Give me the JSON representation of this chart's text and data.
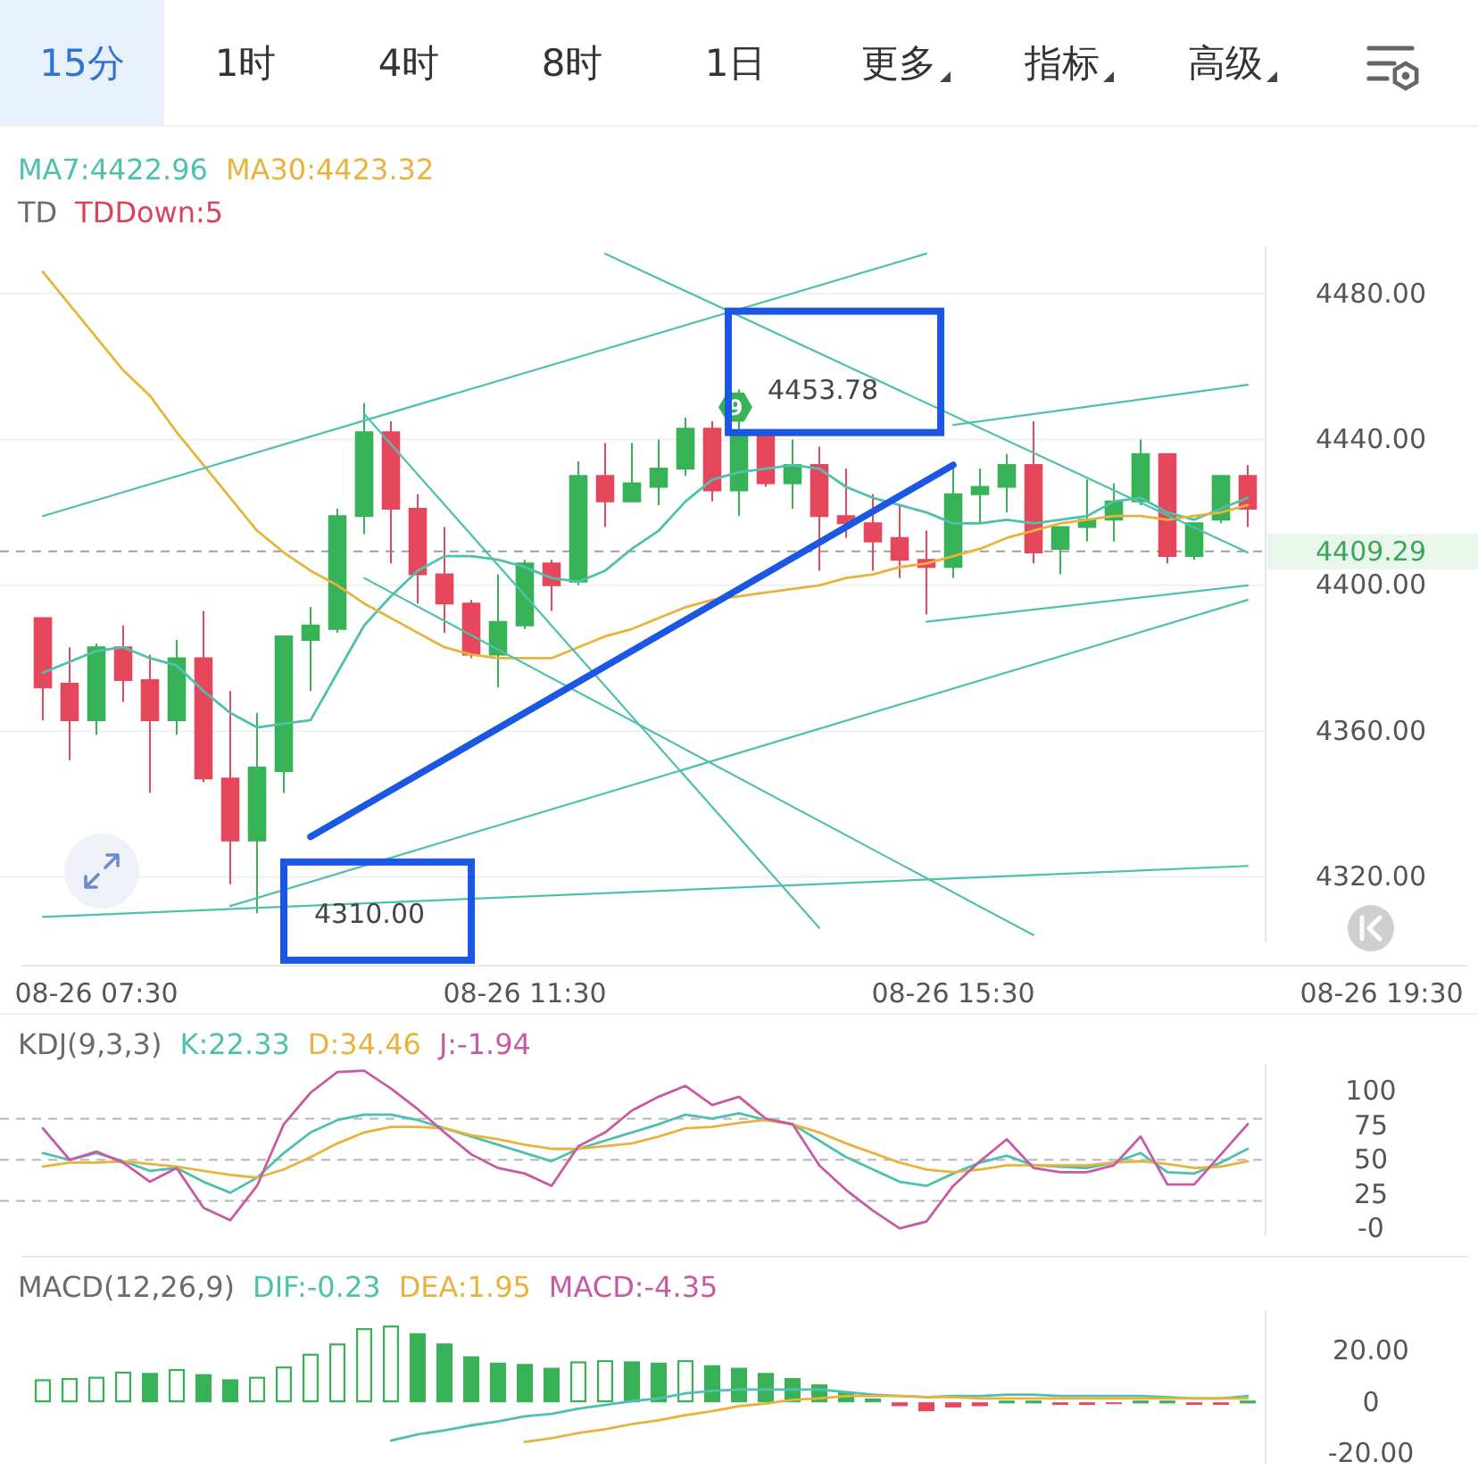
{
  "chart_data": [
    {
      "type": "other",
      "annotations": [
        "15分",
        "1时",
        "4时",
        "8时",
        "1日",
        "更多",
        "指标",
        "高级"
      ]
    },
    {
      "type": "candlestick",
      "legend": "top left",
      "grid": "y",
      "categories": [
        null,
        null,
        "08-26 07:30",
        null,
        null,
        null,
        null,
        null,
        null,
        null,
        null,
        null,
        null,
        null,
        null,
        null,
        null,
        null,
        "08-26 11:30",
        null,
        null,
        null,
        null,
        null,
        null,
        null,
        null,
        null,
        null,
        null,
        null,
        null,
        null,
        null,
        "08-26 15:30",
        null,
        null,
        null,
        null,
        null,
        null,
        null,
        null,
        null,
        null,
        null,
        null,
        null,
        null,
        null,
        "08-26 19:30"
      ],
      "ohlc": [
        [
          4391,
          4391,
          4363,
          4372
        ],
        [
          4373,
          4383,
          4352,
          4363
        ],
        [
          4363,
          4384,
          4359,
          4383
        ],
        [
          4383,
          4389,
          4368,
          4374
        ],
        [
          4374,
          4381,
          4343,
          4363
        ],
        [
          4363,
          4385,
          4359,
          4380
        ],
        [
          4380,
          4393,
          4346,
          4347
        ],
        [
          4347,
          4371,
          4318,
          4330
        ],
        [
          4330,
          4365,
          4310,
          4350
        ],
        [
          4349,
          4386,
          4343,
          4386
        ],
        [
          4385,
          4394,
          4371,
          4389
        ],
        [
          4388,
          4421,
          4387,
          4419
        ],
        [
          4419,
          4450,
          4414,
          4442
        ],
        [
          4442,
          4445,
          4406,
          4421
        ],
        [
          4421,
          4425,
          4395,
          4403
        ],
        [
          4403,
          4416,
          4387,
          4395
        ],
        [
          4395,
          4396,
          4380,
          4381
        ],
        [
          4381,
          4403,
          4372,
          4390
        ],
        [
          4389,
          4407,
          4388,
          4406
        ],
        [
          4406,
          4407,
          4393,
          4400
        ],
        [
          4401,
          4434,
          4400,
          4430
        ],
        [
          4430,
          4439,
          4416,
          4423
        ],
        [
          4423,
          4439,
          4423,
          4428
        ],
        [
          4427,
          4440,
          4422,
          4432
        ],
        [
          4432,
          4446,
          4430,
          4443
        ],
        [
          4443,
          4445,
          4423,
          4426
        ],
        [
          4426,
          4453.78,
          4419,
          4441
        ],
        [
          4441,
          4442,
          4427,
          4428
        ],
        [
          4428,
          4440,
          4421,
          4433
        ],
        [
          4433,
          4438,
          4404,
          4419
        ],
        [
          4419,
          4432,
          4413,
          4417
        ],
        [
          4417,
          4425,
          4404,
          4412
        ],
        [
          4413,
          4422,
          4402,
          4407
        ],
        [
          4407,
          4415,
          4392,
          4405
        ],
        [
          4405,
          4432,
          4402,
          4425
        ],
        [
          4425,
          4432,
          4417,
          4427
        ],
        [
          4427,
          4436,
          4420,
          4433
        ],
        [
          4433,
          4445,
          4406,
          4409
        ],
        [
          4410,
          4416,
          4403,
          4416
        ],
        [
          4416,
          4429,
          4412,
          4418
        ],
        [
          4418,
          4428,
          4412,
          4423
        ],
        [
          4423,
          4440,
          4422,
          4436
        ],
        [
          4436,
          4436,
          4406,
          4408
        ],
        [
          4408,
          4417,
          4407,
          4417
        ],
        [
          4418,
          4430,
          4417,
          4430
        ],
        [
          4430,
          4433,
          4416,
          4421
        ],
        null,
        null,
        null,
        null,
        null
      ],
      "colors": [
        "#e5475c",
        "#e5475c",
        "#37b257",
        "#e5475c",
        "#e5475c",
        "#37b257",
        "#e5475c",
        "#e5475c",
        "#37b257",
        "#37b257",
        "#37b257",
        "#37b257",
        "#37b257",
        "#e5475c",
        "#e5475c",
        "#e5475c",
        "#e5475c",
        "#37b257",
        "#37b257",
        "#e5475c",
        "#37b257",
        "#e5475c",
        "#37b257",
        "#37b257",
        "#37b257",
        "#e5475c",
        "#37b257",
        "#e5475c",
        "#37b257",
        "#e5475c",
        "#e5475c",
        "#e5475c",
        "#e5475c",
        "#e5475c",
        "#37b257",
        "#37b257",
        "#37b257",
        "#e5475c",
        "#37b257",
        "#37b257",
        "#37b257",
        "#37b257",
        "#e5475c",
        "#37b257",
        "#37b257",
        "#e5475c",
        null,
        null,
        null,
        null,
        null
      ],
      "series": [
        {
          "type": "line",
          "name": "MA7:4422.96",
          "color": "#4fc0ae",
          "values": [
            4376,
            4379,
            4382,
            4383,
            4380,
            4378,
            4371,
            4365,
            4361,
            4362,
            4363,
            4376,
            4389,
            4397,
            4404,
            4408,
            4408,
            4407,
            4405,
            4402,
            4401,
            4404,
            4410,
            4415,
            4423,
            4429,
            4431,
            4432,
            4433,
            4432,
            4427,
            4424,
            4422,
            4420,
            4417,
            4417,
            4418,
            4417,
            4418,
            4419,
            4423,
            4424,
            4420,
            4418,
            4421,
            4424,
            null,
            null,
            null,
            null,
            null
          ]
        },
        {
          "type": "line",
          "name": "MA30:4423.32",
          "color": "#e9b23c",
          "values": [
            4486,
            4477,
            4468,
            4459,
            4452,
            4442,
            4433,
            4424,
            4415,
            4409,
            4404,
            4400,
            4395,
            4391,
            4387,
            4383,
            4381,
            4380,
            4380,
            4380,
            4383,
            4386,
            4388,
            4391,
            4394,
            4396,
            4397,
            4398,
            4399,
            4400,
            4402,
            4403,
            4405,
            4406,
            4408,
            4410,
            4413,
            4415,
            4417,
            4418,
            4419,
            4419,
            4418,
            4419,
            4420,
            4422,
            null,
            null,
            null,
            null,
            null
          ]
        },
        {
          "type": "line",
          "color": "#4fc0ae",
          "values": [
            4419,
            null,
            null,
            null,
            null,
            null,
            null,
            null,
            null,
            null,
            null,
            null,
            null,
            null,
            null,
            null,
            null,
            null,
            null,
            null,
            null,
            null,
            null,
            null,
            null,
            null,
            null,
            null,
            null,
            null,
            null,
            null,
            null,
            4491,
            null,
            null,
            null,
            null,
            null,
            null,
            null,
            null,
            null,
            null,
            null,
            null,
            null,
            null,
            null,
            null,
            null
          ]
        },
        {
          "type": "line",
          "color": "#4fc0ae",
          "values": [
            null,
            null,
            null,
            null,
            null,
            null,
            null,
            null,
            null,
            null,
            null,
            null,
            null,
            null,
            null,
            null,
            null,
            null,
            null,
            null,
            null,
            4491,
            null,
            null,
            null,
            null,
            null,
            null,
            null,
            null,
            null,
            null,
            null,
            null,
            null,
            null,
            null,
            null,
            null,
            null,
            null,
            null,
            null,
            null,
            null,
            4409,
            null,
            null,
            null,
            null,
            null
          ]
        },
        {
          "type": "line",
          "color": "#4fc0ae",
          "values": [
            null,
            null,
            null,
            null,
            null,
            null,
            null,
            null,
            null,
            null,
            null,
            null,
            4447,
            null,
            null,
            null,
            null,
            null,
            null,
            null,
            null,
            null,
            null,
            null,
            null,
            null,
            null,
            null,
            null,
            4306,
            null,
            null,
            null,
            null,
            null,
            null,
            null,
            null,
            null,
            null,
            null,
            null,
            null,
            null,
            null,
            null,
            null,
            null,
            null,
            null,
            null
          ]
        },
        {
          "type": "line",
          "color": "#4fc0ae",
          "values": [
            null,
            null,
            null,
            null,
            null,
            null,
            null,
            null,
            null,
            null,
            null,
            null,
            4402,
            null,
            null,
            null,
            null,
            null,
            null,
            null,
            null,
            null,
            null,
            null,
            null,
            null,
            null,
            null,
            null,
            null,
            null,
            null,
            null,
            null,
            null,
            null,
            null,
            4304,
            null,
            null,
            null,
            null,
            null,
            null,
            null,
            null,
            null,
            null,
            null,
            null,
            null
          ]
        },
        {
          "type": "line",
          "color": "#4fc0ae",
          "values": [
            4309,
            null,
            null,
            null,
            null,
            null,
            null,
            null,
            null,
            null,
            null,
            null,
            null,
            null,
            null,
            null,
            null,
            null,
            null,
            null,
            null,
            null,
            null,
            null,
            null,
            null,
            null,
            null,
            null,
            null,
            null,
            null,
            null,
            null,
            null,
            null,
            null,
            null,
            null,
            null,
            null,
            null,
            null,
            null,
            null,
            4323,
            null,
            null,
            null,
            null,
            null
          ]
        },
        {
          "type": "line",
          "color": "#4fc0ae",
          "values": [
            null,
            null,
            null,
            null,
            null,
            null,
            null,
            4312,
            null,
            null,
            null,
            null,
            null,
            null,
            null,
            null,
            null,
            null,
            null,
            null,
            null,
            null,
            null,
            null,
            null,
            null,
            null,
            null,
            null,
            null,
            null,
            null,
            null,
            null,
            null,
            null,
            null,
            null,
            null,
            null,
            null,
            null,
            null,
            null,
            null,
            4396,
            null,
            null,
            null,
            null,
            null
          ]
        },
        {
          "type": "line",
          "color": "#4fc0ae",
          "values": [
            null,
            null,
            null,
            null,
            null,
            null,
            null,
            null,
            null,
            null,
            null,
            null,
            null,
            null,
            null,
            null,
            null,
            null,
            null,
            null,
            null,
            null,
            null,
            null,
            null,
            null,
            null,
            null,
            null,
            null,
            null,
            null,
            null,
            4390,
            null,
            null,
            null,
            null,
            null,
            null,
            null,
            null,
            null,
            null,
            null,
            4400,
            null,
            null,
            null,
            null,
            null
          ]
        },
        {
          "type": "line",
          "color": "#4fc0ae",
          "values": [
            null,
            null,
            null,
            null,
            null,
            null,
            null,
            null,
            null,
            null,
            null,
            null,
            null,
            null,
            null,
            null,
            null,
            null,
            null,
            null,
            null,
            null,
            null,
            null,
            null,
            null,
            null,
            null,
            null,
            null,
            null,
            null,
            null,
            null,
            4444,
            null,
            null,
            null,
            null,
            null,
            null,
            null,
            null,
            null,
            null,
            4455,
            null,
            null,
            null,
            null,
            null
          ]
        },
        {
          "type": "line",
          "color": "#1b57e3",
          "values": [
            null,
            null,
            null,
            null,
            null,
            null,
            null,
            null,
            null,
            null,
            4331,
            null,
            null,
            null,
            null,
            null,
            null,
            null,
            null,
            null,
            null,
            null,
            null,
            null,
            null,
            null,
            null,
            null,
            null,
            null,
            null,
            null,
            null,
            null,
            4433,
            null,
            null,
            null,
            null,
            null,
            null,
            null,
            null,
            null,
            null,
            null,
            null,
            null,
            null,
            null,
            null
          ]
        }
      ],
      "ylim": [
        4302,
        4493
      ],
      "yticks": [
        {
          "value": 4320,
          "label": "4320.00"
        },
        {
          "value": 4360,
          "label": "4360.00"
        },
        {
          "value": 4400,
          "label": "4400.00"
        },
        {
          "value": 4440,
          "label": "4440.00"
        },
        {
          "value": 4480,
          "label": "4480.00"
        }
      ],
      "ref_lines": [
        {
          "axis": "y",
          "value": 4409.29,
          "label": "4409.29",
          "color": "#9e9e9e",
          "line_style": "dashed"
        }
      ],
      "annotations": [
        "TD",
        "TDDown:5",
        "9",
        "4453.78",
        "4310.00"
      ]
    },
    {
      "type": "line",
      "title": "KDJ(9,3,3)",
      "legend": "top left",
      "categories": [
        null,
        null,
        null,
        null,
        null,
        null,
        null,
        null,
        null,
        null,
        null,
        null,
        null,
        null,
        null,
        null,
        null,
        null,
        null,
        null,
        null,
        null,
        null,
        null,
        null,
        null,
        null,
        null,
        null,
        null,
        null,
        null,
        null,
        null,
        null,
        null,
        null,
        null,
        null,
        null,
        null,
        null,
        null,
        null,
        null,
        null,
        null,
        null,
        null,
        null,
        null
      ],
      "series": [
        {
          "name": "K:22.33",
          "color": "#4fc0ae",
          "values": [
            55,
            50,
            55,
            49,
            42,
            44,
            34,
            26,
            37,
            55,
            70,
            79,
            83,
            83,
            79,
            73,
            67,
            61,
            55,
            49,
            58,
            64,
            70,
            76,
            83,
            80,
            84,
            79,
            76,
            64,
            52,
            43,
            34,
            31,
            40,
            48,
            53,
            46,
            45,
            44,
            48,
            55,
            41,
            40,
            48,
            58,
            null,
            null,
            null,
            null,
            null
          ]
        },
        {
          "name": "D:34.46",
          "color": "#e9b23c",
          "values": [
            45,
            48,
            48,
            49,
            47,
            45,
            42,
            39,
            37,
            43,
            52,
            62,
            70,
            74,
            74,
            73,
            68,
            65,
            61,
            58,
            58,
            60,
            62,
            67,
            73,
            74,
            77,
            79,
            76,
            70,
            62,
            55,
            48,
            43,
            41,
            43,
            46,
            46,
            46,
            46,
            48,
            49,
            47,
            44,
            45,
            49,
            null,
            null,
            null,
            null,
            null
          ]
        },
        {
          "name": "J:-1.94",
          "color": "#c85aa5",
          "values": [
            73,
            50,
            56,
            48,
            34,
            44,
            15,
            6,
            31,
            76,
            99,
            114,
            115,
            102,
            87,
            70,
            54,
            44,
            40,
            31,
            60,
            70,
            86,
            96,
            104,
            90,
            96,
            80,
            76,
            46,
            28,
            13,
            0,
            5,
            31,
            49,
            65,
            44,
            41,
            41,
            46,
            67,
            32,
            32,
            54,
            76,
            null,
            null,
            null,
            null,
            null
          ]
        }
      ],
      "ylim": [
        -5,
        120
      ],
      "yticks": [
        100,
        75,
        50,
        25,
        {
          "value": 0,
          "label": "-0"
        }
      ],
      "ref_lines": [
        {
          "axis": "y",
          "value": 80,
          "color": "#b5b5b5",
          "line_style": "dashed"
        },
        {
          "axis": "y",
          "value": 50,
          "color": "#b5b5b5",
          "line_style": "dashed"
        },
        {
          "axis": "y",
          "value": 20,
          "color": "#b5b5b5",
          "line_style": "dashed"
        }
      ]
    },
    {
      "type": "bar",
      "title": "MACD(12,26,9)",
      "legend": "top left",
      "categories": [
        null,
        null,
        null,
        null,
        null,
        null,
        null,
        null,
        null,
        null,
        null,
        null,
        null,
        null,
        null,
        null,
        null,
        null,
        null,
        null,
        null,
        null,
        null,
        null,
        null,
        null,
        null,
        null,
        null,
        null,
        null,
        null,
        null,
        null,
        null,
        null,
        null,
        null,
        null,
        null,
        null,
        null,
        null,
        null,
        null,
        null,
        null,
        null,
        null,
        null,
        null
      ],
      "series": [
        {
          "type": "line",
          "name": "DIF:-0.23",
          "color": "#4fc0ae",
          "values": [
            null,
            null,
            null,
            null,
            null,
            null,
            null,
            null,
            null,
            null,
            null,
            null,
            null,
            -15,
            -12.5,
            -11,
            -9,
            -7.5,
            -5.5,
            -4.5,
            -2.5,
            -1,
            0.5,
            1.5,
            3.5,
            4.5,
            5,
            5,
            5,
            5,
            4,
            3,
            2.5,
            2,
            2.5,
            2.5,
            3,
            3,
            2.5,
            2.5,
            2.5,
            2.5,
            2,
            1.5,
            1.5,
            2.5,
            null,
            null,
            null,
            null,
            null
          ]
        },
        {
          "type": "line",
          "name": "DEA:1.95",
          "color": "#e9b23c",
          "values": [
            null,
            null,
            null,
            null,
            null,
            null,
            null,
            null,
            null,
            null,
            null,
            null,
            null,
            null,
            null,
            null,
            null,
            null,
            -15.5,
            -14,
            -12,
            -10.5,
            -8.5,
            -7,
            -5,
            -3.5,
            -1.5,
            -0.5,
            1,
            1.5,
            2.5,
            2.5,
            2.5,
            2,
            2,
            1.5,
            1.5,
            1.5,
            1.5,
            1.5,
            1.5,
            1.5,
            1.5,
            1.5,
            1.5,
            1.5,
            null,
            null,
            null,
            null,
            null
          ]
        },
        {
          "type": "bar",
          "name": "MACD:-4.35",
          "values": [
            9,
            9.5,
            10,
            12,
            11.5,
            13,
            11,
            9,
            10,
            14,
            19,
            23,
            29,
            30,
            27,
            23,
            18,
            15.5,
            15,
            13.5,
            16,
            16.5,
            16,
            15.5,
            16.5,
            14.5,
            13.5,
            11.5,
            9.5,
            7,
            4,
            1.5,
            -1.5,
            -3.5,
            -2,
            -1.5,
            0.5,
            0.5,
            -1,
            -1,
            -0.5,
            0.5,
            0.5,
            -1,
            -1,
            0.5,
            null,
            null,
            null,
            null,
            null
          ],
          "colors": [
            "#37b257",
            "#37b257",
            "#37b257",
            "#37b257",
            "#37b257",
            "#37b257",
            "#37b257",
            "#37b257",
            "#37b257",
            "#37b257",
            "#37b257",
            "#37b257",
            "#37b257",
            "#37b257",
            "#37b257",
            "#37b257",
            "#37b257",
            "#37b257",
            "#37b257",
            "#37b257",
            "#37b257",
            "#37b257",
            "#37b257",
            "#37b257",
            "#37b257",
            "#37b257",
            "#37b257",
            "#37b257",
            "#37b257",
            "#37b257",
            "#37b257",
            "#37b257",
            "#e5475c",
            "#e5475c",
            "#e5475c",
            "#e5475c",
            "#37b257",
            "#37b257",
            "#e5475c",
            "#e5475c",
            "#e5475c",
            "#37b257",
            "#37b257",
            "#e5475c",
            "#e5475c",
            "#37b257",
            null,
            null,
            null,
            null,
            null
          ]
        }
      ],
      "ylim": [
        -24,
        36
      ],
      "yticks": [
        {
          "value": 20,
          "label": "20.00"
        },
        0,
        {
          "value": -20,
          "label": "-20.00"
        }
      ]
    }
  ]
}
